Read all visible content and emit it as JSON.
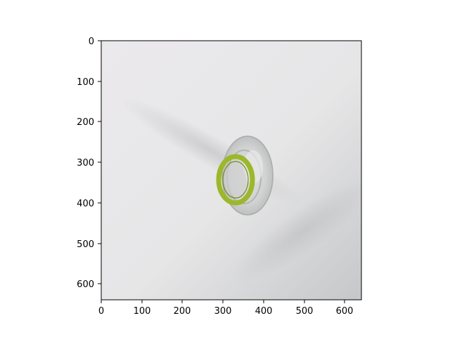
{
  "figure": {
    "photo_description_icon": "bottle-mouth-with-green-ring-icon",
    "x_axis": {
      "ticks": [
        "0",
        "100",
        "200",
        "300",
        "400",
        "500",
        "600"
      ]
    },
    "y_axis": {
      "ticks": [
        "0",
        "100",
        "200",
        "300",
        "400",
        "500",
        "600"
      ]
    },
    "colors": {
      "ring": "#9bb82a",
      "background_light": "#ececee",
      "background_shadow": "#c9c9cb"
    }
  }
}
